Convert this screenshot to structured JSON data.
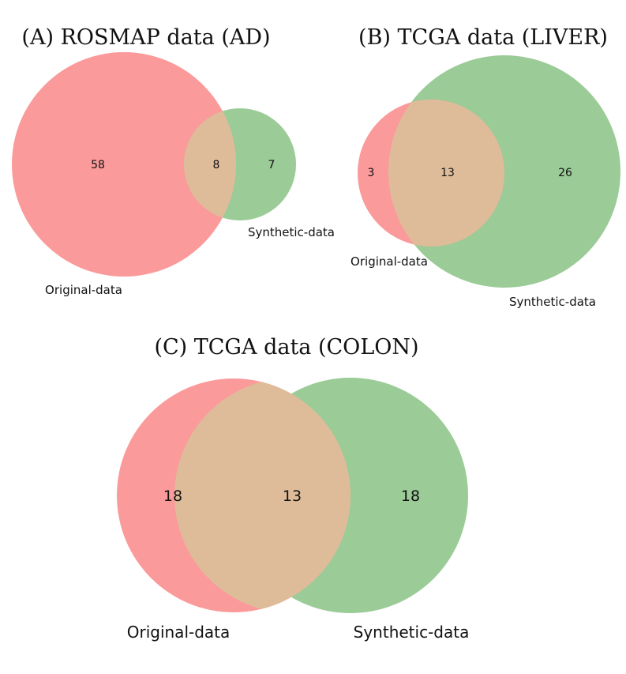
{
  "colors": {
    "original": "#fb9a9a",
    "synthetic": "#9bcb97",
    "overlap": "#dfbc99"
  },
  "panels": {
    "a": {
      "title": "(A) ROSMAP data (AD)",
      "original_only": "58",
      "overlap": "8",
      "synthetic_only": "7",
      "original_label": "Original-data",
      "synthetic_label": "Synthetic-data"
    },
    "b": {
      "title": "(B) TCGA data (LIVER)",
      "original_only": "3",
      "overlap": "13",
      "synthetic_only": "26",
      "original_label": "Original-data",
      "synthetic_label": "Synthetic-data"
    },
    "c": {
      "title": "(C) TCGA data (COLON)",
      "original_only": "18",
      "overlap": "13",
      "synthetic_only": "18",
      "original_label": "Original-data",
      "synthetic_label": "Synthetic-data"
    }
  }
}
